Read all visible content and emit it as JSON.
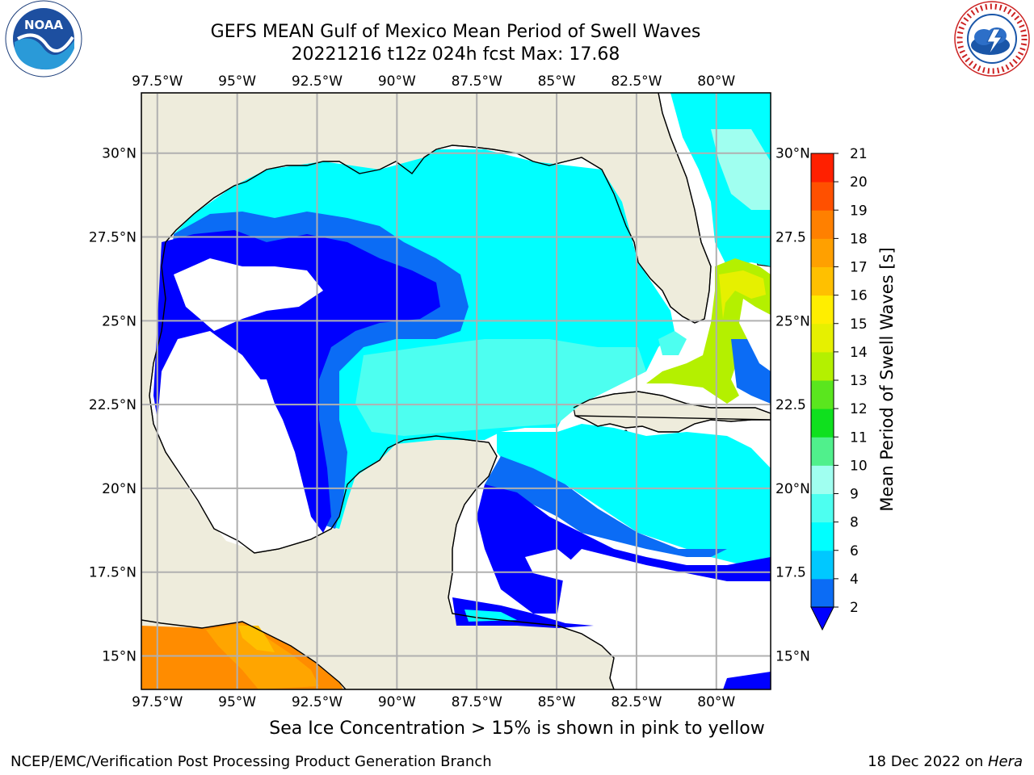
{
  "header": {
    "title_line1": "GEFS MEAN Gulf of Mexico Mean Period of Swell Waves",
    "title_line2": "20221216 t12z 024h fcst   Max: 17.68"
  },
  "logos": {
    "left": "noaa-logo",
    "right": "nws-logo"
  },
  "map": {
    "lon_ticks": [
      "97.5°W",
      "95°W",
      "92.5°W",
      "90°W",
      "87.5°W",
      "85°W",
      "82.5°W",
      "80°W"
    ],
    "lon_values": [
      -97.5,
      -95,
      -92.5,
      -90,
      -87.5,
      -85,
      -82.5,
      -80
    ],
    "lat_ticks_left": [
      "30°N",
      "27.5°N",
      "25°N",
      "22.5°N",
      "20°N",
      "17.5°N",
      "15°N"
    ],
    "lat_ticks_right": [
      "30°N",
      "27.5",
      "25°N",
      "22.5",
      "20°N",
      "17.5",
      "15°N"
    ],
    "lat_values": [
      30,
      27.5,
      25,
      22.5,
      20,
      17.5,
      15
    ],
    "extent": {
      "lon_min": -98,
      "lon_max": -78.3,
      "lat_min": 14,
      "lat_max": 31.8
    },
    "colors": {
      "land": "#eeecdc",
      "no_data": "#ffffff",
      "grid": "#b0b0b0",
      "coast": "#000000"
    }
  },
  "colorbar": {
    "label": "Mean Period of Swell Waves [s]",
    "levels": [
      "2",
      "4",
      "6",
      "8",
      "9",
      "10",
      "11",
      "12",
      "13",
      "14",
      "15",
      "16",
      "17",
      "18",
      "19",
      "20",
      "21"
    ],
    "colors": [
      "#0b6cf5",
      "#00c8ff",
      "#00ffff",
      "#4dfff0",
      "#a0fff0",
      "#50f08c",
      "#0fe01e",
      "#5ae61e",
      "#b4f000",
      "#e6f000",
      "#ffee00",
      "#ffc000",
      "#ffa000",
      "#ff8000",
      "#ff5000",
      "#ff2000"
    ],
    "under_color": "#0000ff"
  },
  "note": "Sea Ice Concentration > 15% is shown in pink to yellow",
  "footer": {
    "left": "NCEP/EMC/Verification Post Processing Product Generation Branch",
    "right_date": "18 Dec 2022 on ",
    "right_host": "Hera"
  }
}
